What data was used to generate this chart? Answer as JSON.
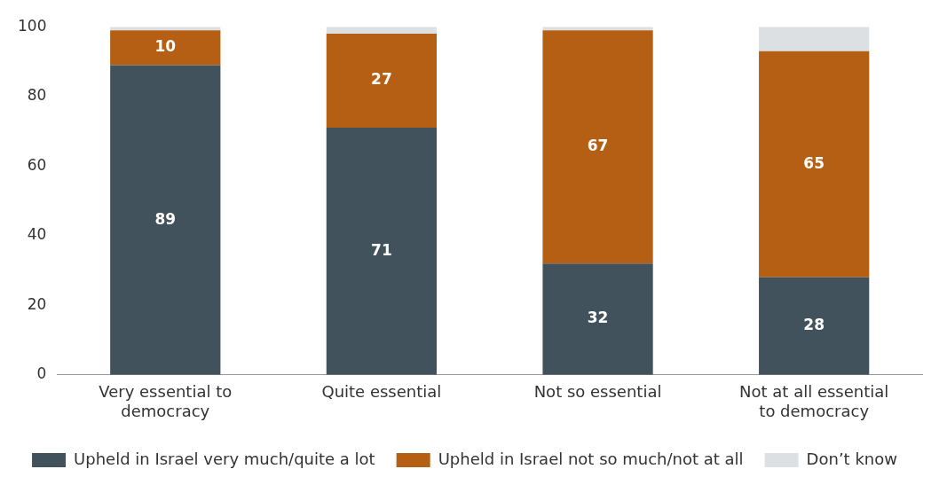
{
  "chart_data": {
    "type": "bar",
    "stacked": true,
    "categories": [
      "Very essential to democracy",
      "Quite essential",
      "Not so essential",
      "Not at all essential to democracy"
    ],
    "series": [
      {
        "name": "Upheld in Israel very much/quite a lot",
        "color": "#41525c",
        "values": [
          89,
          71,
          32,
          28
        ],
        "value_labels": [
          "89",
          "71",
          "32",
          "28"
        ]
      },
      {
        "name": "Upheld in Israel not so much/not at all",
        "color": "#b45f14",
        "values": [
          10,
          27,
          67,
          65
        ],
        "value_labels": [
          "10",
          "27",
          "67",
          "65"
        ]
      },
      {
        "name": "Don’t know",
        "color": "#dde0e3",
        "values": [
          1,
          2,
          1,
          7
        ]
      }
    ],
    "ylim": [
      0,
      100
    ],
    "yticks": [
      0,
      20,
      40,
      60,
      80,
      100
    ],
    "grid": false,
    "legend": "bottom"
  }
}
